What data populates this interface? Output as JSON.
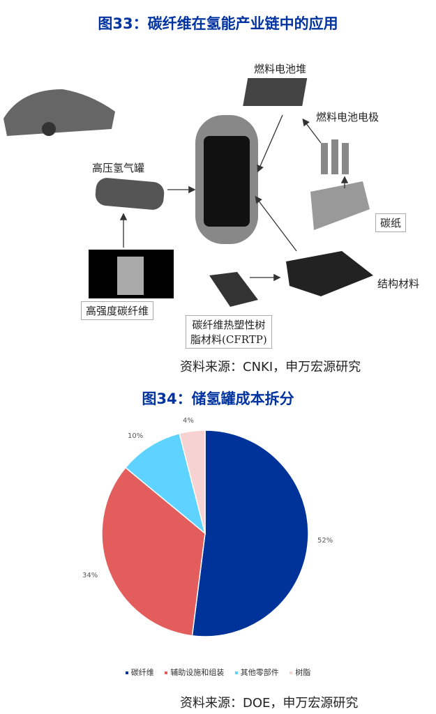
{
  "figure33": {
    "title": "图33：碳纤维在氢能产业链中的应用",
    "source": "资料来源：CNKI，申万宏源研究",
    "labels": {
      "stack": "燃料电池堆",
      "electrode": "燃料电池电极",
      "tank": "高压氢气罐",
      "paper": "碳纸",
      "structure": "结构材料",
      "fiber": "高强度碳纤维",
      "cfrtp_1": "碳纤维热塑性树",
      "cfrtp_2": "脂材料(CFRTP)"
    }
  },
  "figure34": {
    "title": "图34：储氢罐成本拆分",
    "source": "资料来源：DOE，申万宏源研究"
  },
  "chart_data": {
    "type": "pie",
    "categories": [
      "碳纤维",
      "辅助设施和组装",
      "其他零部件",
      "树脂"
    ],
    "values": [
      52,
      34,
      10,
      4
    ],
    "labels": [
      "52%",
      "34%",
      "10%",
      "4%"
    ],
    "colors": [
      "#003399",
      "#e35d5d",
      "#5fd3ff",
      "#f7d2d2"
    ],
    "legend": "bottom"
  }
}
